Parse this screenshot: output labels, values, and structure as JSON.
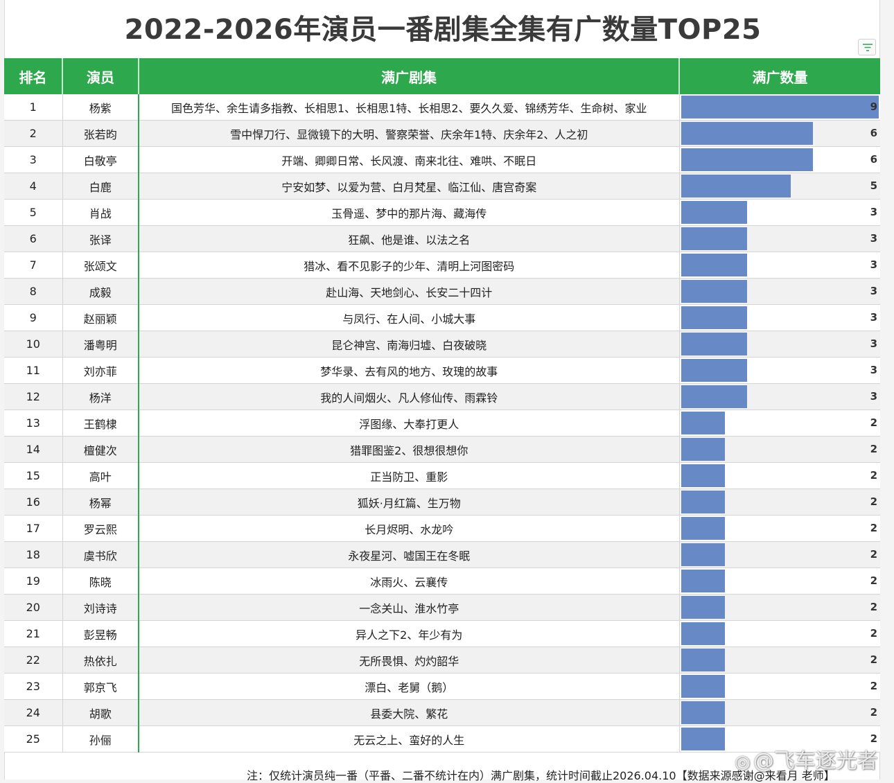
{
  "title": "2022-2026年演员一番剧集全集有广数量TOP25",
  "table": {
    "headers": {
      "rank": "排名",
      "actor": "演员",
      "dramas": "满广剧集",
      "count": "满广数量"
    },
    "max_count": 9,
    "rows": [
      {
        "rank": "1",
        "actor": "杨紫",
        "dramas": "国色芳华、余生请多指教、长相思1、长相思1特、长相思2、要久久爱、锦绣芳华、生命树、家业",
        "count": 9
      },
      {
        "rank": "2",
        "actor": "张若昀",
        "dramas": "雪中悍刀行、显微镜下的大明、警察荣誉、庆余年1特、庆余年2、人之初",
        "count": 6
      },
      {
        "rank": "3",
        "actor": "白敬亭",
        "dramas": "开端、卿卿日常、长风渡、南来北往、难哄、不眠日",
        "count": 6
      },
      {
        "rank": "4",
        "actor": "白鹿",
        "dramas": "宁安如梦、以爱为营、白月梵星、临江仙、唐宫奇案",
        "count": 5
      },
      {
        "rank": "5",
        "actor": "肖战",
        "dramas": "玉骨遥、梦中的那片海、藏海传",
        "count": 3
      },
      {
        "rank": "6",
        "actor": "张译",
        "dramas": "狂飙、他是谁、以法之名",
        "count": 3
      },
      {
        "rank": "7",
        "actor": "张颂文",
        "dramas": "猎冰、看不见影子的少年、清明上河图密码",
        "count": 3
      },
      {
        "rank": "8",
        "actor": "成毅",
        "dramas": "赴山海、天地剑心、长安二十四计",
        "count": 3
      },
      {
        "rank": "9",
        "actor": "赵丽颖",
        "dramas": "与凤行、在人间、小城大事",
        "count": 3
      },
      {
        "rank": "10",
        "actor": "潘粤明",
        "dramas": "昆仑神宫、南海归墟、白夜破晓",
        "count": 3
      },
      {
        "rank": "11",
        "actor": "刘亦菲",
        "dramas": "梦华录、去有风的地方、玫瑰的故事",
        "count": 3
      },
      {
        "rank": "12",
        "actor": "杨洋",
        "dramas": "我的人间烟火、凡人修仙传、雨霖铃",
        "count": 3
      },
      {
        "rank": "13",
        "actor": "王鹤棣",
        "dramas": "浮图缘、大奉打更人",
        "count": 2
      },
      {
        "rank": "14",
        "actor": "檀健次",
        "dramas": "猎罪图鉴2、很想很想你",
        "count": 2
      },
      {
        "rank": "15",
        "actor": "高叶",
        "dramas": "正当防卫、重影",
        "count": 2
      },
      {
        "rank": "16",
        "actor": "杨幂",
        "dramas": "狐妖·月红篇、生万物",
        "count": 2
      },
      {
        "rank": "17",
        "actor": "罗云熙",
        "dramas": "长月烬明、水龙吟",
        "count": 2
      },
      {
        "rank": "18",
        "actor": "虞书欣",
        "dramas": "永夜星河、嘘国王在冬眠",
        "count": 2
      },
      {
        "rank": "19",
        "actor": "陈晓",
        "dramas": "冰雨火、云襄传",
        "count": 2
      },
      {
        "rank": "20",
        "actor": "刘诗诗",
        "dramas": "一念关山、淮水竹亭",
        "count": 2
      },
      {
        "rank": "21",
        "actor": "彭昱畅",
        "dramas": "异人之下2、年少有为",
        "count": 2
      },
      {
        "rank": "22",
        "actor": "热依扎",
        "dramas": "无所畏惧、灼灼韶华",
        "count": 2
      },
      {
        "rank": "23",
        "actor": "郭京飞",
        "dramas": "漂白、老舅（鹅）",
        "count": 2
      },
      {
        "rank": "24",
        "actor": "胡歌",
        "dramas": "县委大院、繁花",
        "count": 2
      },
      {
        "rank": "25",
        "actor": "孙俪",
        "dramas": "无云之上、蛮好的人生",
        "count": 2
      }
    ]
  },
  "note": "注：仅统计演员纯一番（平番、二番不统计在内）满广剧集，统计时间截止2026.04.10【数据来源感谢@来看月 老师】",
  "watermark": "@飞车逐光者",
  "colors": {
    "header_bg": "#2ea84c",
    "bar": "#6789c6"
  },
  "icons": {
    "filter": "filter-icon",
    "weibo": "weibo-logo-icon"
  }
}
